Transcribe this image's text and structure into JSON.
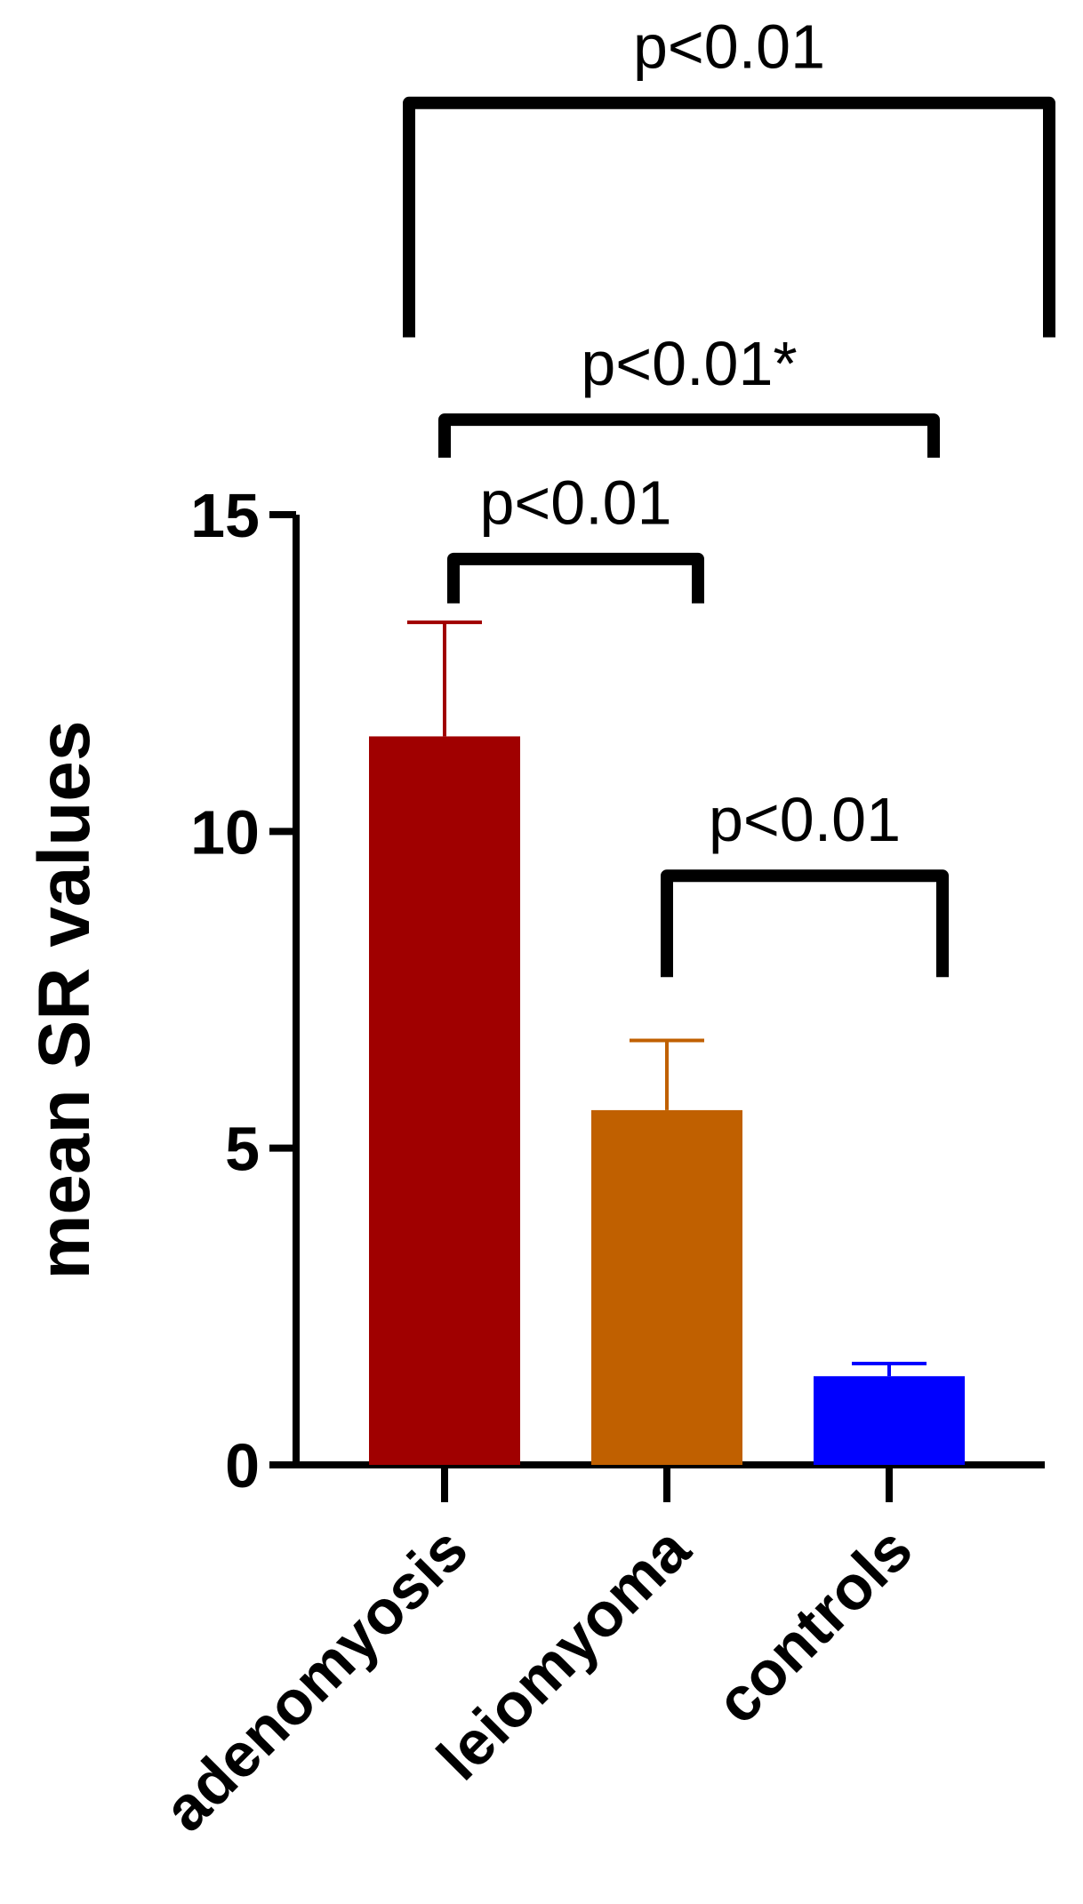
{
  "chart_data": {
    "type": "bar",
    "title": "",
    "xlabel": "",
    "ylabel": "mean SR values",
    "ylim": [
      0,
      15
    ],
    "yticks": [
      0,
      5,
      10,
      15
    ],
    "grid": false,
    "categories": [
      "adenomyosis",
      "leiomyoma",
      "controls"
    ],
    "values": [
      11.5,
      5.6,
      1.4
    ],
    "errors": [
      1.8,
      1.1,
      0.2
    ],
    "colors": [
      "#a00000",
      "#c06000",
      "#0000ff"
    ],
    "comparisons": [
      {
        "from": 1,
        "to": 2,
        "label": "p<0.01",
        "level": 2
      },
      {
        "from": 0,
        "to": 1,
        "label": "p<0.01",
        "level": 1
      },
      {
        "from": 0,
        "to": 2,
        "label": "p<0.01*",
        "level": 3
      },
      {
        "from": 0,
        "to": 2,
        "label": "p<0.01",
        "level": 4
      }
    ]
  }
}
